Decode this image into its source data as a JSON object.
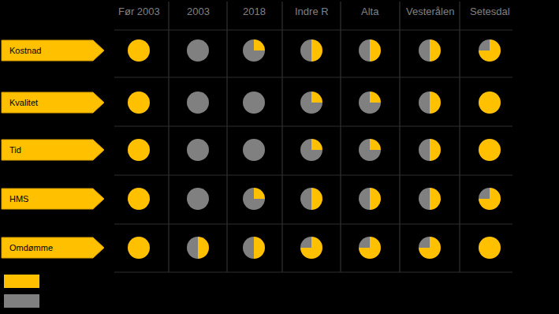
{
  "chart_data": {
    "type": "pie",
    "columns": [
      "Før 2003",
      "2003",
      "2018",
      "Indre R",
      "Alta",
      "Vesterålen",
      "Setesdal"
    ],
    "colors": [
      "#FFC000",
      "#808080"
    ],
    "rows": [
      {
        "name": "Kostnad",
        "values": [
          [
            100,
            0
          ],
          [
            0,
            100
          ],
          [
            25,
            75
          ],
          [
            50,
            50
          ],
          [
            50,
            50
          ],
          [
            50,
            50
          ],
          [
            75,
            25
          ]
        ]
      },
      {
        "name": "Kvalitet",
        "values": [
          [
            100,
            0
          ],
          [
            0,
            100
          ],
          [
            0,
            100
          ],
          [
            25,
            75
          ],
          [
            25,
            75
          ],
          [
            50,
            50
          ],
          [
            100,
            0
          ]
        ]
      },
      {
        "name": "Tid",
        "values": [
          [
            100,
            0
          ],
          [
            0,
            100
          ],
          [
            0,
            100
          ],
          [
            25,
            75
          ],
          [
            25,
            75
          ],
          [
            50,
            50
          ],
          [
            100,
            0
          ]
        ]
      },
      {
        "name": "HMS",
        "values": [
          [
            100,
            0
          ],
          [
            0,
            100
          ],
          [
            25,
            75
          ],
          [
            50,
            50
          ],
          [
            50,
            50
          ],
          [
            50,
            50
          ],
          [
            75,
            25
          ]
        ]
      },
      {
        "name": "Omdømme",
        "values": [
          [
            100,
            0
          ],
          [
            50,
            50
          ],
          [
            50,
            50
          ],
          [
            75,
            25
          ],
          [
            75,
            25
          ],
          [
            75,
            25
          ],
          [
            100,
            0
          ]
        ]
      }
    ]
  }
}
